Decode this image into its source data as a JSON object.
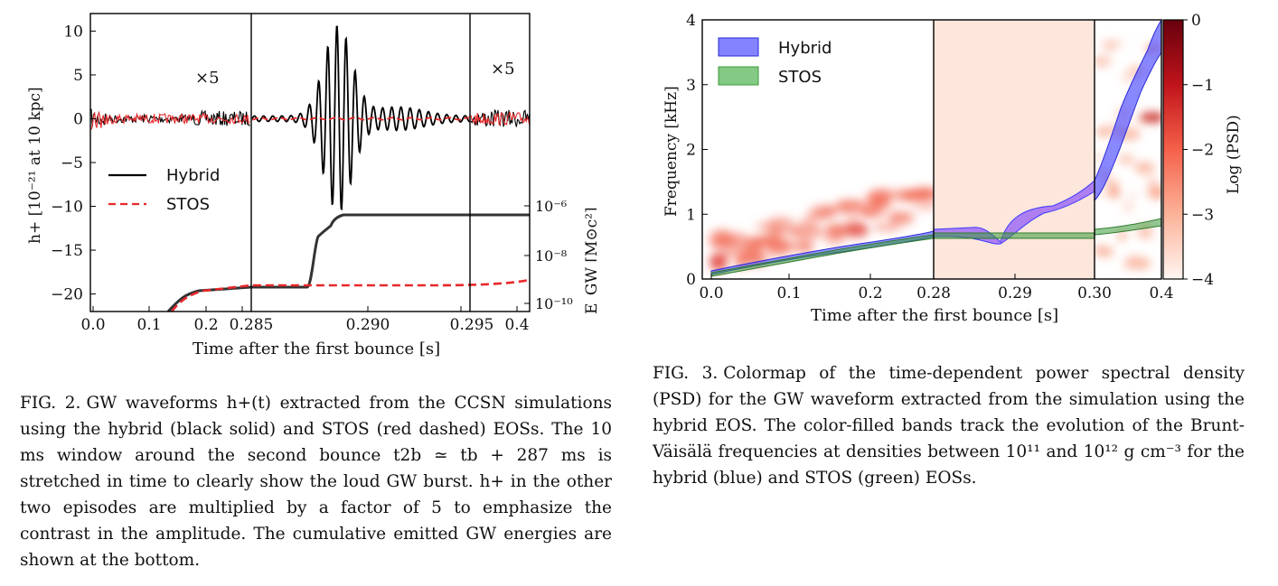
{
  "fig2": {
    "panel_multipliers": [
      "×5",
      "×5"
    ],
    "legend": [
      {
        "label": "Hybrid",
        "color": "#000000",
        "style": "solid"
      },
      {
        "label": "STOS",
        "color": "#e8282a",
        "style": "dashed"
      }
    ],
    "ylabel_left": "h+ [10⁻²¹ at 10 kpc]",
    "ylabel_right": "E_GW [M⊙c²]",
    "xlabel": "Time after the first bounce [s]",
    "yticks_left": [
      "10",
      "5",
      "0",
      "−5",
      "−10",
      "−15",
      "−20"
    ],
    "yticks_right": [
      "10⁻⁶",
      "10⁻⁸",
      "10⁻¹⁰"
    ],
    "xticks": [
      "0.0",
      "0.1",
      "0.2",
      "0.285",
      "0.290",
      "0.295",
      "0.4"
    ],
    "caption_label": "FIG. 2.",
    "caption_text": "GW waveforms h+(t) extracted from the CCSN simulations using the hybrid (black solid) and STOS (red dashed) EOSs. The 10 ms window around the second bounce t2b ≃ tb + 287 ms is stretched in time to clearly show the loud GW burst. h+ in the other two episodes are multiplied by a factor of 5 to emphasize the contrast in the amplitude. The cumulative emitted GW energies are shown at the bottom."
  },
  "fig3": {
    "legend": [
      {
        "label": "Hybrid",
        "color": "#3b3bff"
      },
      {
        "label": "STOS",
        "color": "#3a9a3a"
      }
    ],
    "ylabel": "Frequency [kHz]",
    "xlabel": "Time after the first bounce [s]",
    "yticks": [
      "0",
      "1",
      "2",
      "3",
      "4"
    ],
    "xticks": [
      "0.0",
      "0.1",
      "0.2",
      "0.28",
      "0.29",
      "0.30",
      "0.4"
    ],
    "colorbar_label": "Log (PSD)",
    "colorbar_ticks": [
      "0",
      "−1",
      "−2",
      "−3",
      "−4"
    ],
    "colors": {
      "cmap_high": "#67000d",
      "cmap_low": "#fff5f0"
    },
    "caption_label": "FIG. 3.",
    "caption_text": "Colormap of the time-dependent power spectral density (PSD) for the GW waveform extracted from the simulation using the hybrid EOS. The color-filled bands track the evolution of the Brunt-Väisälä frequencies at densities between 10¹¹ and 10¹² g cm⁻³ for the hybrid (blue) and STOS (green) EOSs."
  },
  "chart_data": [
    {
      "type": "line",
      "title": "",
      "xlabel": "Time after the first bounce [s]",
      "ylabel": "h+ [10⁻²¹ at 10 kpc]",
      "ylim": [
        -22,
        12
      ],
      "panels": [
        {
          "xlim": [
            0.0,
            0.285
          ],
          "xticks": [
            0.0,
            0.1,
            0.2,
            0.285
          ],
          "note": "×5"
        },
        {
          "xlim": [
            0.285,
            0.295
          ],
          "xticks": [
            0.285,
            0.29,
            0.295
          ]
        },
        {
          "xlim": [
            0.295,
            0.4
          ],
          "xticks": [
            0.295,
            0.4
          ],
          "note": "×5"
        }
      ],
      "series": [
        {
          "name": "Hybrid",
          "burst_peak_t": 0.2887,
          "burst_peak_h": 10.2,
          "burst_min_h": -10.2
        },
        {
          "name": "STOS",
          "burst_peak_h": 0.3
        }
      ],
      "energy_axis": {
        "label": "E_GW [M⊙c²]",
        "ticks": [
          "1e-6",
          "1e-8",
          "1e-10"
        ],
        "Hybrid_final": 1e-06,
        "STOS_final": 1e-09
      }
    },
    {
      "type": "heatmap",
      "title": "",
      "xlabel": "Time after the first bounce [s]",
      "ylabel": "Frequency [kHz]",
      "ylim": [
        0,
        4
      ],
      "panels": [
        {
          "xlim": [
            0.0,
            0.28
          ]
        },
        {
          "xlim": [
            0.28,
            0.3
          ]
        },
        {
          "xlim": [
            0.3,
            0.4
          ]
        }
      ],
      "colorbar": {
        "label": "Log (PSD)",
        "range": [
          -4,
          0
        ]
      },
      "series": [
        {
          "name": "Hybrid",
          "band_kHz_end": [
            3.3,
            4.0
          ]
        },
        {
          "name": "STOS",
          "band_kHz_end": [
            0.85,
            0.9
          ]
        }
      ]
    }
  ]
}
